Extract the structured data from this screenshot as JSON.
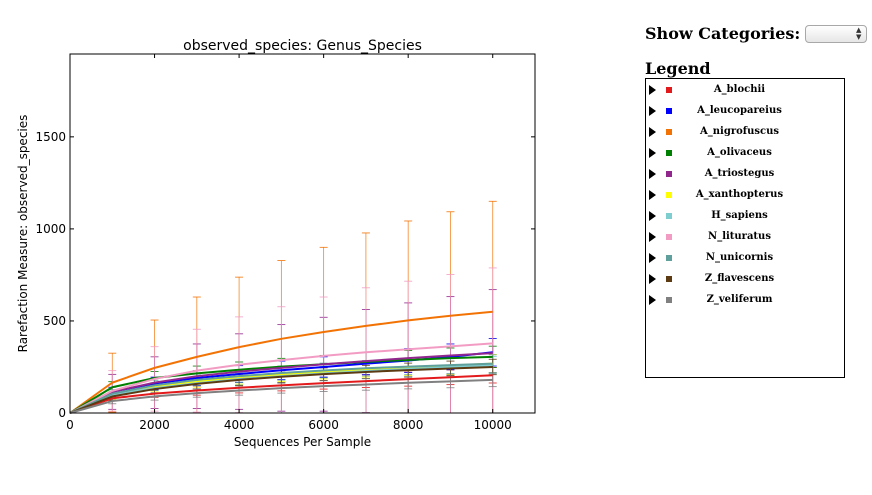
{
  "categories": {
    "label": "Show Categories:"
  },
  "legend": {
    "title": "Legend",
    "items": [
      {
        "label": "A_blochii",
        "color": "#e31a1c"
      },
      {
        "label": "A_leucopareius",
        "color": "#0000ff"
      },
      {
        "label": "A_nigrofuscus",
        "color": "#f27304"
      },
      {
        "label": "A_olivaceus",
        "color": "#008000"
      },
      {
        "label": "A_triostegus",
        "color": "#91278d"
      },
      {
        "label": "A_xanthopterus",
        "color": "#ffff00"
      },
      {
        "label": "H_sapiens",
        "color": "#7ecdcf"
      },
      {
        "label": "N_lituratus",
        "color": "#f29cc4"
      },
      {
        "label": "N_unicornis",
        "color": "#5f9f9c"
      },
      {
        "label": "Z_flavescens",
        "color": "#5c3a12"
      },
      {
        "label": "Z_veliferum",
        "color": "#808080"
      }
    ]
  },
  "chart_data": {
    "type": "line",
    "title": "observed_species: Genus_Species",
    "xlabel": "Sequences Per Sample",
    "ylabel": "Rarefaction Measure: observed_species",
    "xlim": [
      0,
      11000
    ],
    "ylim": [
      0,
      1950
    ],
    "xticks": [
      0,
      2000,
      4000,
      6000,
      8000,
      10000
    ],
    "yticks": [
      0,
      500,
      1000,
      1500
    ],
    "x": [
      0,
      1000,
      2000,
      3000,
      4000,
      5000,
      6000,
      7000,
      8000,
      9000,
      10000
    ],
    "grid": false,
    "series": [
      {
        "name": "A_blochii",
        "color": "#e31a1c",
        "values": [
          0,
          80,
          105,
          122,
          137,
          150,
          162,
          173,
          184,
          194,
          205
        ],
        "err": [
          0,
          15,
          20,
          25,
          28,
          30,
          32,
          35,
          38,
          40,
          42
        ]
      },
      {
        "name": "A_leucopareius",
        "color": "#0000ff",
        "values": [
          0,
          115,
          160,
          190,
          212,
          232,
          250,
          268,
          285,
          305,
          330
        ],
        "err": [
          0,
          25,
          35,
          40,
          45,
          50,
          55,
          60,
          65,
          70,
          75
        ]
      },
      {
        "name": "A_nigrofuscus",
        "color": "#f27304",
        "values": [
          0,
          165,
          245,
          305,
          358,
          403,
          440,
          473,
          503,
          528,
          550
        ],
        "err": [
          0,
          160,
          260,
          325,
          380,
          425,
          460,
          505,
          540,
          565,
          600
        ]
      },
      {
        "name": "A_olivaceus",
        "color": "#008000",
        "values": [
          0,
          140,
          190,
          215,
          235,
          252,
          265,
          278,
          288,
          298,
          305
        ],
        "err": [
          0,
          30,
          35,
          40,
          42,
          45,
          48,
          50,
          52,
          55,
          58
        ]
      },
      {
        "name": "A_triostegus",
        "color": "#91278d",
        "values": [
          0,
          115,
          165,
          200,
          225,
          245,
          265,
          282,
          298,
          312,
          325
        ],
        "err": [
          0,
          95,
          140,
          175,
          205,
          235,
          255,
          280,
          300,
          320,
          345
        ]
      },
      {
        "name": "A_xanthopterus",
        "color": "#ffff00",
        "values": [
          0,
          95,
          140,
          170,
          192,
          210,
          225,
          237,
          248,
          258,
          268
        ],
        "err": [
          0,
          20,
          25,
          30,
          35,
          38,
          40,
          42,
          45,
          47,
          50
        ]
      },
      {
        "name": "H_sapiens",
        "color": "#7ecdcf",
        "values": [
          0,
          100,
          135,
          162,
          185,
          200,
          215,
          228,
          240,
          250,
          260
        ],
        "err": [
          0,
          20,
          25,
          30,
          32,
          35,
          38,
          40,
          42,
          45,
          47
        ]
      },
      {
        "name": "N_lituratus",
        "color": "#f29cc4",
        "values": [
          0,
          120,
          185,
          230,
          262,
          287,
          310,
          330,
          346,
          362,
          378
        ],
        "err": [
          0,
          110,
          175,
          225,
          260,
          290,
          320,
          350,
          370,
          390,
          410
        ]
      },
      {
        "name": "N_unicornis",
        "color": "#5f9f9c",
        "values": [
          0,
          105,
          150,
          180,
          200,
          217,
          231,
          243,
          252,
          260,
          268
        ],
        "err": [
          0,
          22,
          28,
          32,
          35,
          38,
          40,
          42,
          44,
          46,
          48
        ]
      },
      {
        "name": "Z_flavescens",
        "color": "#5c3a12",
        "values": [
          0,
          90,
          130,
          158,
          180,
          197,
          211,
          223,
          233,
          242,
          250
        ],
        "err": [
          0,
          20,
          25,
          28,
          30,
          32,
          34,
          36,
          38,
          40,
          42
        ]
      },
      {
        "name": "Z_veliferum",
        "color": "#808080",
        "values": [
          0,
          65,
          90,
          108,
          122,
          135,
          146,
          155,
          164,
          172,
          180
        ],
        "err": [
          0,
          15,
          20,
          22,
          25,
          27,
          29,
          31,
          33,
          35,
          37
        ]
      }
    ]
  }
}
